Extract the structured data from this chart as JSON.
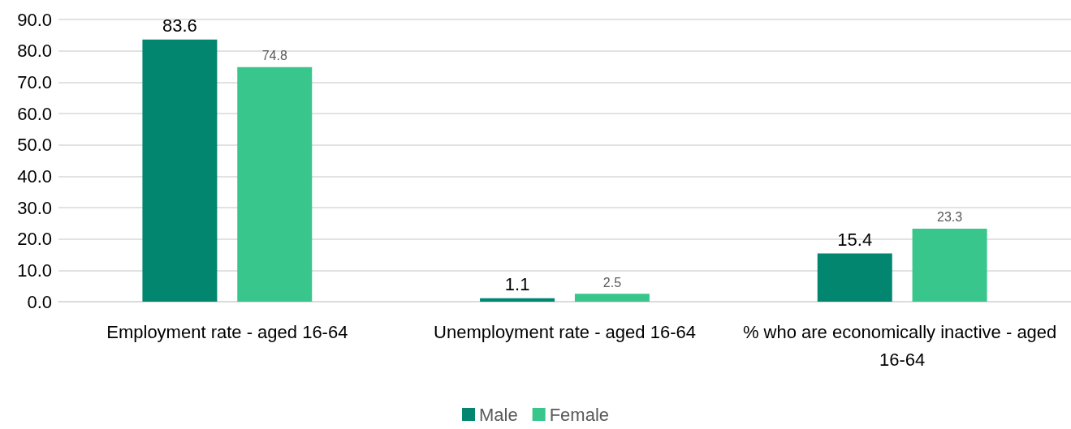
{
  "chart_data": {
    "type": "bar",
    "categories": [
      "Employment rate - aged 16-64",
      "Unemployment rate - aged 16-64",
      "% who are economically inactive - aged 16-64"
    ],
    "series": [
      {
        "name": "Male",
        "color": "#03866f",
        "values": [
          83.6,
          1.1,
          15.4
        ]
      },
      {
        "name": "Female",
        "color": "#38c68c",
        "values": [
          74.8,
          2.5,
          23.3
        ]
      }
    ],
    "ylim": [
      0,
      90
    ],
    "yticks": [
      {
        "value": 0,
        "label": "0.0"
      },
      {
        "value": 10,
        "label": "10.0"
      },
      {
        "value": 20,
        "label": "20.0"
      },
      {
        "value": 30,
        "label": "30.0"
      },
      {
        "value": 40,
        "label": "40.0"
      },
      {
        "value": 50,
        "label": "50.0"
      },
      {
        "value": 60,
        "label": "60.0"
      },
      {
        "value": 70,
        "label": "70.0"
      },
      {
        "value": 80,
        "label": "80.0"
      },
      {
        "value": 90,
        "label": "90.0"
      }
    ],
    "grid": "y",
    "legend": "bottom",
    "data_labels": true
  }
}
